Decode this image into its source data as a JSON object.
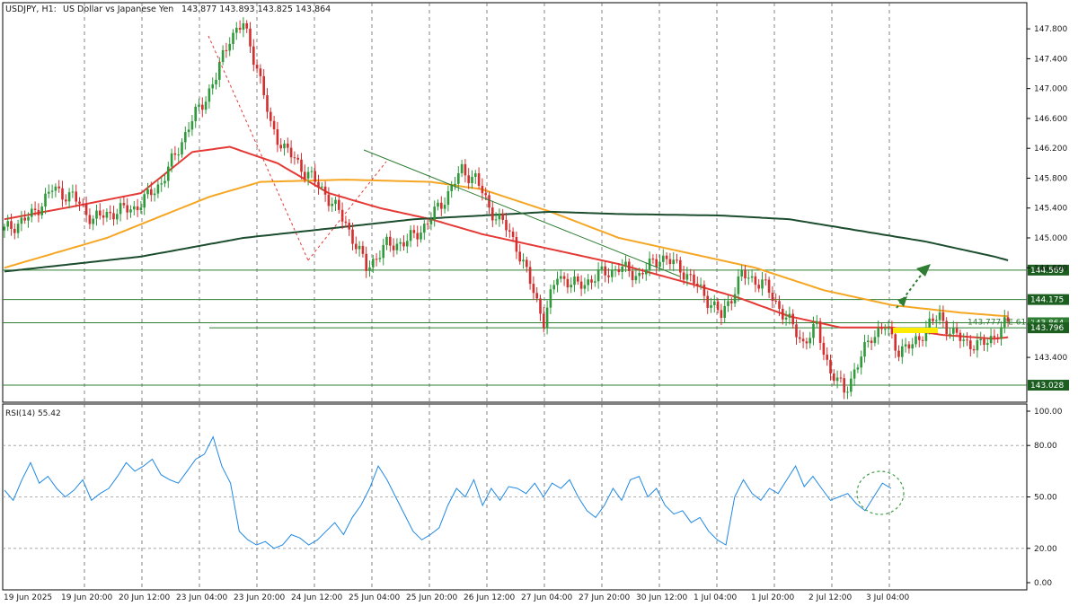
{
  "header": {
    "symbol_tf": "USDJPY, H1:",
    "description": "US Dollar vs Japanese Yen",
    "ohlc": "143.877 143.893 143.825 143.864"
  },
  "chart_data": [
    {
      "type": "candlestick",
      "instrument": "USDJPY",
      "timeframe": "H1",
      "ylim": [
        142.8,
        148.15
      ],
      "y_ticks": [
        "147.800",
        "147.400",
        "147.000",
        "146.600",
        "146.200",
        "145.800",
        "145.400",
        "145.000",
        "144.600",
        "144.175",
        "143.796",
        "143.400",
        "143.028"
      ],
      "x_ticks": [
        "19 Jun 2025",
        "19 Jun 20:00",
        "20 Jun 12:00",
        "23 Jun 04:00",
        "23 Jun 20:00",
        "24 Jun 12:00",
        "25 Jun 04:00",
        "25 Jun 20:00",
        "26 Jun 12:00",
        "27 Jun 04:00",
        "27 Jun 20:00",
        "30 Jun 12:00",
        "1 Jul 04:00",
        "1 Jul 20:00",
        "2 Jul 12:00",
        "3 Jul 04:00"
      ],
      "grid": true,
      "close_path": [
        [
          0,
          145.1
        ],
        [
          8,
          145.3
        ],
        [
          14,
          145.65
        ],
        [
          20,
          145.55
        ],
        [
          26,
          145.25
        ],
        [
          32,
          145.35
        ],
        [
          38,
          145.4
        ],
        [
          42,
          145.55
        ],
        [
          46,
          145.75
        ],
        [
          50,
          146.1
        ],
        [
          54,
          146.5
        ],
        [
          58,
          146.8
        ],
        [
          62,
          147.15
        ],
        [
          66,
          147.7
        ],
        [
          70,
          147.85
        ],
        [
          74,
          147.3
        ],
        [
          78,
          146.5
        ],
        [
          82,
          146.2
        ],
        [
          88,
          145.9
        ],
        [
          94,
          145.6
        ],
        [
          100,
          145.2
        ],
        [
          106,
          144.6
        ],
        [
          112,
          144.9
        ],
        [
          118,
          144.95
        ],
        [
          124,
          145.2
        ],
        [
          130,
          145.6
        ],
        [
          134,
          145.9
        ],
        [
          138,
          145.8
        ],
        [
          142,
          145.4
        ],
        [
          146,
          145.2
        ],
        [
          150,
          144.9
        ],
        [
          154,
          144.4
        ],
        [
          158,
          143.9
        ],
        [
          162,
          144.5
        ],
        [
          168,
          144.35
        ],
        [
          174,
          144.5
        ],
        [
          180,
          144.6
        ],
        [
          186,
          144.5
        ],
        [
          192,
          144.75
        ],
        [
          198,
          144.6
        ],
        [
          204,
          144.3
        ],
        [
          210,
          143.95
        ],
        [
          216,
          144.5
        ],
        [
          222,
          144.4
        ],
        [
          228,
          144.0
        ],
        [
          234,
          143.6
        ],
        [
          238,
          143.8
        ],
        [
          242,
          143.2
        ],
        [
          246,
          142.95
        ],
        [
          250,
          143.3
        ],
        [
          254,
          143.7
        ],
        [
          258,
          143.8
        ],
        [
          262,
          143.5
        ],
        [
          266,
          143.55
        ],
        [
          270,
          143.8
        ],
        [
          274,
          143.95
        ],
        [
          278,
          143.7
        ],
        [
          282,
          143.6
        ],
        [
          286,
          143.55
        ],
        [
          290,
          143.7
        ],
        [
          294,
          143.86
        ]
      ],
      "moving_averages": [
        {
          "color": "#e53935",
          "points": [
            [
              0,
              145.25
            ],
            [
              20,
              145.42
            ],
            [
              40,
              145.6
            ],
            [
              55,
              146.15
            ],
            [
              66,
              146.22
            ],
            [
              80,
              146.0
            ],
            [
              95,
              145.6
            ],
            [
              110,
              145.4
            ],
            [
              125,
              145.25
            ],
            [
              140,
              145.05
            ],
            [
              160,
              144.85
            ],
            [
              180,
              144.65
            ],
            [
              200,
              144.4
            ],
            [
              215,
              144.2
            ],
            [
              230,
              143.95
            ],
            [
              245,
              143.8
            ],
            [
              260,
              143.8
            ],
            [
              275,
              143.7
            ],
            [
              290,
              143.65
            ],
            [
              294,
              143.67
            ]
          ]
        },
        {
          "color": "#f5a623",
          "points": [
            [
              0,
              144.6
            ],
            [
              30,
              145.0
            ],
            [
              60,
              145.55
            ],
            [
              75,
              145.75
            ],
            [
              100,
              145.78
            ],
            [
              125,
              145.75
            ],
            [
              140,
              145.65
            ],
            [
              160,
              145.35
            ],
            [
              180,
              145.0
            ],
            [
              200,
              144.8
            ],
            [
              220,
              144.6
            ],
            [
              240,
              144.3
            ],
            [
              260,
              144.1
            ],
            [
              280,
              144.0
            ],
            [
              294,
              143.95
            ]
          ]
        },
        {
          "color": "#1b4d2e",
          "points": [
            [
              0,
              144.55
            ],
            [
              40,
              144.75
            ],
            [
              70,
              145.0
            ],
            [
              100,
              145.15
            ],
            [
              120,
              145.25
            ],
            [
              140,
              145.3
            ],
            [
              160,
              145.35
            ],
            [
              180,
              145.32
            ],
            [
              210,
              145.3
            ],
            [
              230,
              145.25
            ],
            [
              250,
              145.1
            ],
            [
              270,
              144.95
            ],
            [
              290,
              144.75
            ],
            [
              294,
              144.7
            ]
          ]
        }
      ],
      "horizontal_levels": [
        {
          "price": 144.569,
          "label": "144.569"
        },
        {
          "price": 144.175,
          "label": "144.175"
        },
        {
          "price": 143.864,
          "label": "143.864"
        },
        {
          "price": 143.796,
          "label": "143.796"
        },
        {
          "price": 143.028,
          "label": "143.028"
        }
      ],
      "fib_label": "143.777 FE 61.8",
      "annotations": [
        "descending trendline",
        "dashed retracement line",
        "green dotted up arrow",
        "yellow marker"
      ]
    },
    {
      "type": "line",
      "title": "RSI(14) 55.42",
      "ylim": [
        0,
        100
      ],
      "y_ticks": [
        "100.00",
        "80.00",
        "50.00",
        "20.00",
        "0.00"
      ],
      "levels": [
        80,
        50,
        20
      ],
      "values": [
        54,
        48,
        60,
        70,
        58,
        62,
        55,
        50,
        54,
        60,
        48,
        52,
        55,
        62,
        70,
        65,
        68,
        72,
        63,
        60,
        58,
        65,
        72,
        75,
        85,
        68,
        58,
        30,
        25,
        22,
        24,
        20,
        22,
        28,
        26,
        22,
        25,
        30,
        35,
        28,
        38,
        45,
        55,
        68,
        60,
        50,
        40,
        30,
        25,
        28,
        32,
        45,
        55,
        50,
        60,
        45,
        55,
        48,
        56,
        55,
        52,
        58,
        50,
        58,
        55,
        60,
        50,
        42,
        38,
        45,
        55,
        48,
        60,
        62,
        50,
        55,
        45,
        40,
        42,
        35,
        38,
        30,
        25,
        22,
        50,
        60,
        52,
        48,
        55,
        52,
        60,
        68,
        56,
        62,
        55,
        48,
        50,
        52,
        46,
        42,
        50,
        58,
        55
      ]
    }
  ]
}
